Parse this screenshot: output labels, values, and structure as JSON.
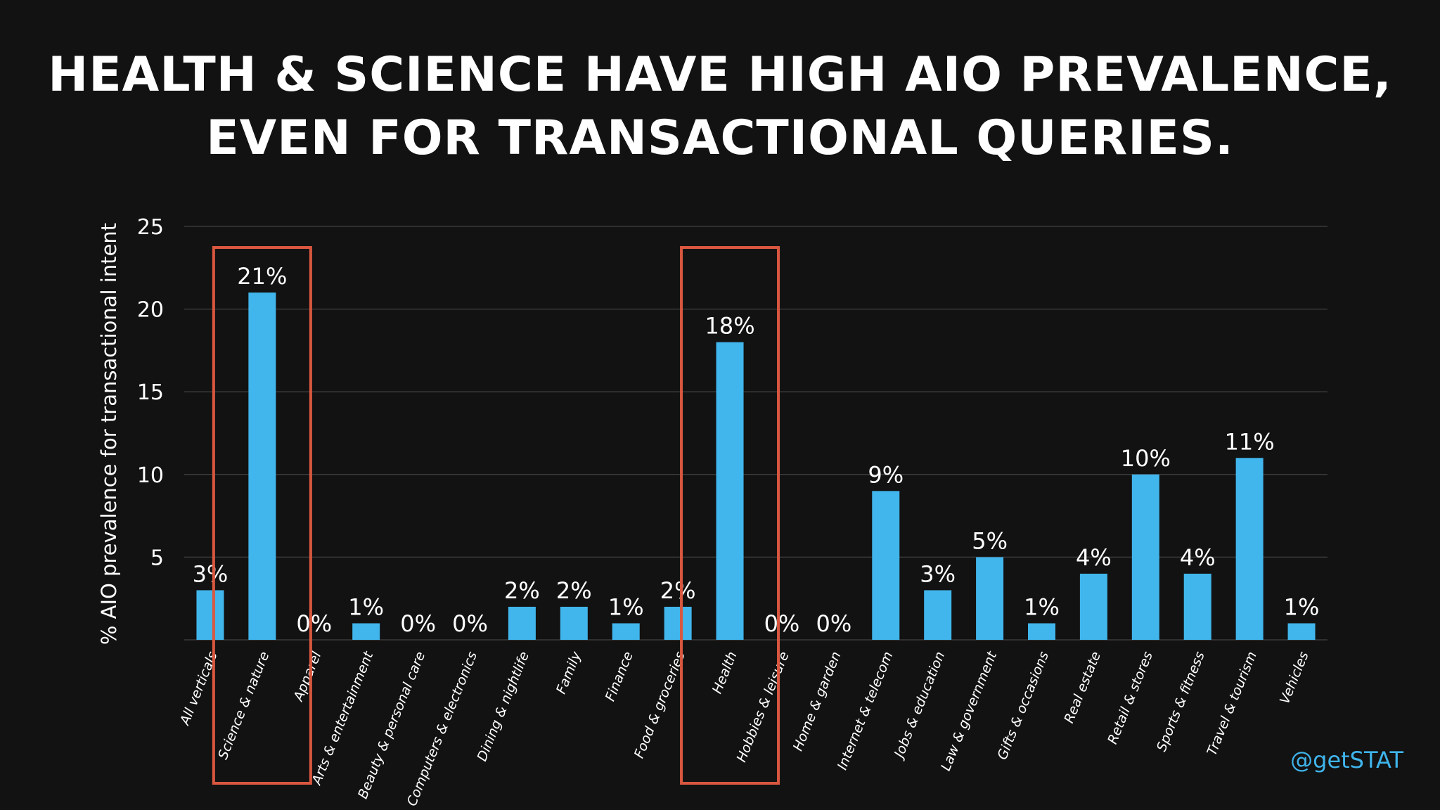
{
  "title": {
    "line1": "HEALTH & SCIENCE HAVE HIGH AIO PREVALENCE,",
    "line2": "EVEN FOR TRANSACTIONAL QUERIES."
  },
  "handle": "@getSTAT",
  "colors": {
    "background": "#121212",
    "bar": "#41b6ec",
    "highlight_box": "#d9573f",
    "gridline": "#3a3a3a",
    "text": "#ffffff",
    "handle": "#3fb4eb"
  },
  "chart_data": {
    "type": "bar",
    "title": "HEALTH & SCIENCE HAVE HIGH AIO PREVALENCE, EVEN FOR TRANSACTIONAL QUERIES.",
    "xlabel": "",
    "ylabel": "% AIO prevalence for transactional intent",
    "ylim": [
      0,
      25
    ],
    "yticks": [
      5,
      10,
      15,
      20,
      25
    ],
    "grid": true,
    "categories": [
      "All verticals",
      "Science & nature",
      "Apparel",
      "Arts & entertainment",
      "Beauty & personal care",
      "Computers & electronics",
      "Dining & nightlife",
      "Family",
      "Finance",
      "Food & groceries",
      "Health",
      "Hobbies & leisure",
      "Home & garden",
      "Internet & telecom",
      "Jobs & education",
      "Law & government",
      "Gifts & occasions",
      "Real estate",
      "Retail & stores",
      "Sports & fitness",
      "Travel & tourism",
      "Vehicles"
    ],
    "values": [
      3,
      21,
      0,
      1,
      0,
      0,
      2,
      2,
      1,
      2,
      18,
      0,
      0,
      9,
      3,
      5,
      1,
      4,
      10,
      4,
      11,
      1
    ],
    "data_labels": [
      "3%",
      "21%",
      "0%",
      "1%",
      "0%",
      "0%",
      "2%",
      "2%",
      "1%",
      "2%",
      "18%",
      "0%",
      "0%",
      "9%",
      "3%",
      "5%",
      "1%",
      "4%",
      "10%",
      "4%",
      "11%",
      "1%"
    ],
    "highlighted_categories": [
      "Science & nature",
      "Health"
    ]
  }
}
